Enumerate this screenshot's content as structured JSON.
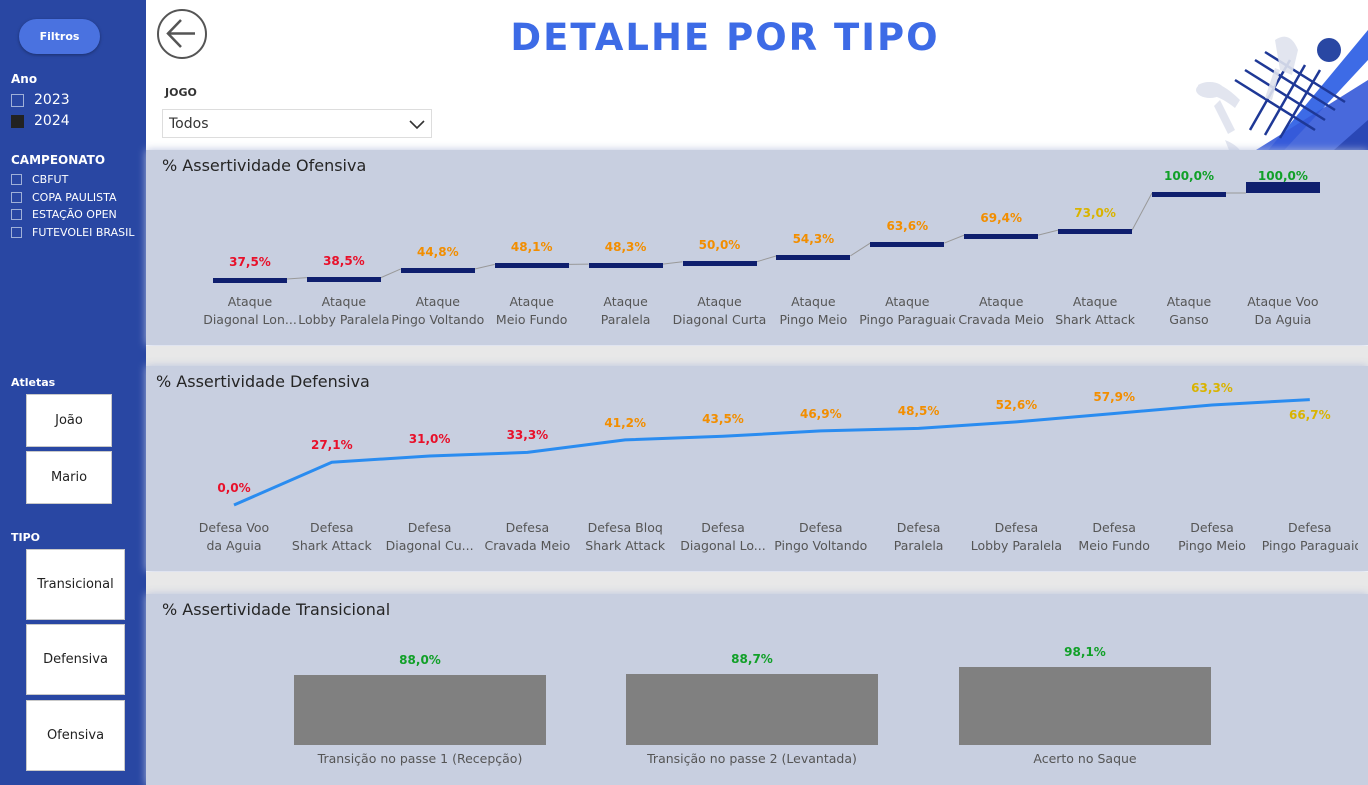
{
  "sidebar": {
    "filters_button": "Filtros",
    "ano_label": "Ano",
    "anos": [
      {
        "label": "2023",
        "checked": false
      },
      {
        "label": "2024",
        "checked": true
      }
    ],
    "campeonato_label": "CAMPEONATO",
    "campeonatos": [
      {
        "label": "CBFUT",
        "checked": false
      },
      {
        "label": "COPA PAULISTA",
        "checked": false
      },
      {
        "label": "ESTAÇÃO OPEN",
        "checked": false
      },
      {
        "label": "FUTEVOLEI BRASIL",
        "checked": false
      }
    ],
    "atletas_label": "Atletas",
    "atletas": [
      "João",
      "Mario"
    ],
    "tipo_label": "TIPO",
    "tipos": [
      "Transicional",
      "Defensiva",
      "Ofensiva"
    ]
  },
  "header": {
    "title": "DETALHE POR TIPO",
    "back_icon": "back-arrow-icon",
    "jogo_label": "JOGO",
    "jogo_value": "Todos"
  },
  "colors": {
    "red": "#e8102a",
    "orange": "#f28e00",
    "gold": "#d9b300",
    "green": "#11a028",
    "bar_dark": "#0f1f6e",
    "line_blue": "#2a8cf0",
    "gray_bar": "#808080"
  },
  "chart_data": [
    {
      "type": "bar",
      "title": "% Assertividade Ofensiva",
      "categories": [
        "Ataque Diagonal Lon...",
        "Ataque Lobby Paralela",
        "Ataque Pingo Voltando",
        "Ataque Meio Fundo",
        "Ataque Paralela",
        "Ataque Diagonal Curta",
        "Ataque Pingo Meio",
        "Ataque Pingo Paraguaio",
        "Ataque Cravada Meio",
        "Ataque Shark Attack",
        "Ataque Ganso",
        "Ataque Voo Da Aguia"
      ],
      "values": [
        37.5,
        38.5,
        44.8,
        48.1,
        48.3,
        50.0,
        54.3,
        63.6,
        69.4,
        73.0,
        100.0,
        100.0
      ],
      "labels": [
        "37,5%",
        "38,5%",
        "44,8%",
        "48,1%",
        "48,3%",
        "50,0%",
        "54,3%",
        "63,6%",
        "69,4%",
        "73,0%",
        "100,0%",
        "100,0%"
      ],
      "label_colors": [
        "red",
        "red",
        "orange",
        "orange",
        "orange",
        "orange",
        "orange",
        "orange",
        "orange",
        "gold",
        "green",
        "green"
      ]
    },
    {
      "type": "line",
      "title": "% Assertividade Defensiva",
      "categories": [
        "Defesa Voo da Aguia",
        "Defesa Shark Attack",
        "Defesa Diagonal Cu...",
        "Defesa Cravada Meio",
        "Defesa Bloq Shark Attack",
        "Defesa Diagonal Lo...",
        "Defesa Pingo Voltando",
        "Defesa Paralela",
        "Defesa Lobby Paralela",
        "Defesa Meio Fundo",
        "Defesa Pingo Meio",
        "Defesa Pingo Paraguaio"
      ],
      "values": [
        0.0,
        27.1,
        31.0,
        33.3,
        41.2,
        43.5,
        46.9,
        48.5,
        52.6,
        57.9,
        63.3,
        66.7
      ],
      "labels": [
        "0,0%",
        "27,1%",
        "31,0%",
        "33,3%",
        "41,2%",
        "43,5%",
        "46,9%",
        "48,5%",
        "52,6%",
        "57,9%",
        "63,3%",
        "66,7%"
      ],
      "label_colors": [
        "red",
        "red",
        "red",
        "red",
        "orange",
        "orange",
        "orange",
        "orange",
        "orange",
        "orange",
        "gold",
        "gold"
      ]
    },
    {
      "type": "bar",
      "title": "% Assertividade Transicional",
      "categories": [
        "Transição no passe 1 (Recepção)",
        "Transição no passe 2 (Levantada)",
        "Acerto no Saque"
      ],
      "values": [
        88.0,
        88.7,
        98.1
      ],
      "labels": [
        "88,0%",
        "88,7%",
        "98,1%"
      ],
      "label_colors": [
        "green",
        "green",
        "green"
      ]
    }
  ]
}
